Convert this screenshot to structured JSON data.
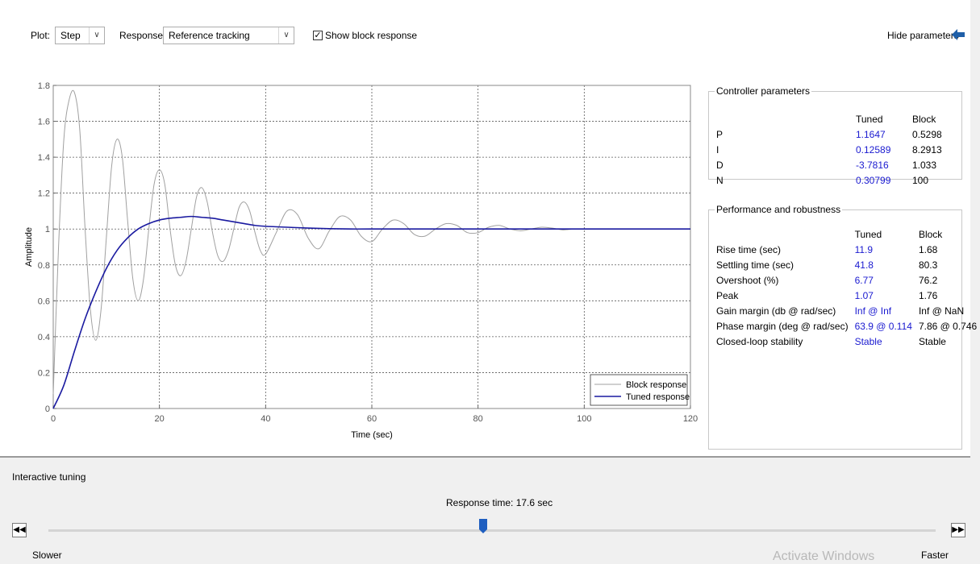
{
  "toolbar": {
    "plot_label": "Plot:",
    "plot_value": "Step",
    "response_label": "Response:",
    "response_value": "Reference tracking",
    "show_block_label": "Show block response",
    "show_block_checked": true,
    "hide_params_label": "Hide parameters"
  },
  "chart_data": {
    "type": "line",
    "xlabel": "Time (sec)",
    "ylabel": "Amplitude",
    "xlim": [
      0,
      120
    ],
    "ylim": [
      0,
      1.8
    ],
    "xticks": [
      0,
      20,
      40,
      60,
      80,
      100,
      120
    ],
    "yticks": [
      0,
      0.2,
      0.4,
      0.6,
      0.8,
      1,
      1.2,
      1.4,
      1.6,
      1.8
    ],
    "grid": true,
    "legend_position": "bottom-right",
    "series": [
      {
        "name": "Block response",
        "color": "#a0a0a0",
        "x": [
          0,
          1,
          2,
          3,
          4,
          5,
          6,
          7,
          8,
          9,
          10,
          11,
          12,
          13,
          14,
          15,
          16,
          17,
          18,
          19,
          20,
          21,
          22,
          23,
          24,
          25,
          26,
          27,
          28,
          29,
          30,
          31,
          32,
          33,
          34,
          35,
          36,
          37,
          38,
          39,
          40,
          42,
          44,
          46,
          48,
          50,
          52,
          54,
          56,
          58,
          60,
          62,
          64,
          66,
          68,
          70,
          72,
          74,
          76,
          78,
          80,
          82,
          84,
          86,
          88,
          90,
          92,
          94,
          96,
          98,
          100,
          104,
          108,
          112,
          116,
          120
        ],
        "y": [
          0.08,
          0.9,
          1.5,
          1.72,
          1.76,
          1.55,
          1.0,
          0.55,
          0.38,
          0.55,
          0.95,
          1.35,
          1.5,
          1.4,
          1.05,
          0.72,
          0.6,
          0.72,
          1.0,
          1.25,
          1.33,
          1.25,
          1.0,
          0.8,
          0.74,
          0.82,
          1.0,
          1.18,
          1.23,
          1.15,
          0.98,
          0.85,
          0.82,
          0.88,
          1.0,
          1.12,
          1.15,
          1.1,
          0.98,
          0.88,
          0.86,
          0.98,
          1.1,
          1.08,
          0.95,
          0.89,
          0.99,
          1.07,
          1.05,
          0.96,
          0.93,
          1.0,
          1.05,
          1.03,
          0.97,
          0.96,
          1.0,
          1.03,
          1.02,
          0.98,
          0.98,
          1.01,
          1.02,
          1.0,
          0.99,
          1.0,
          1.01,
          1.005,
          0.995,
          1.0,
          1.0,
          1.0,
          1.0,
          1.0,
          1.0,
          1.0
        ]
      },
      {
        "name": "Tuned response",
        "color": "#1a1aa0",
        "x": [
          0,
          2,
          4,
          6,
          8,
          10,
          12,
          14,
          16,
          18,
          20,
          22,
          24,
          26,
          28,
          30,
          32,
          34,
          36,
          38,
          40,
          44,
          48,
          52,
          56,
          60,
          70,
          80,
          90,
          100,
          110,
          120
        ],
        "y": [
          0,
          0.13,
          0.32,
          0.5,
          0.65,
          0.78,
          0.88,
          0.95,
          1.0,
          1.03,
          1.05,
          1.06,
          1.065,
          1.07,
          1.065,
          1.06,
          1.05,
          1.04,
          1.03,
          1.02,
          1.015,
          1.01,
          1.005,
          1.002,
          1.0,
          1.0,
          1.0,
          1.0,
          1.0,
          1.0,
          1.0,
          1.0
        ]
      }
    ]
  },
  "controller": {
    "title": "Controller parameters",
    "headers": [
      "",
      "Tuned",
      "Block"
    ],
    "rows": [
      [
        "P",
        "1.1647",
        "0.5298"
      ],
      [
        "I",
        "0.12589",
        "8.2913"
      ],
      [
        "D",
        "-3.7816",
        "1.033"
      ],
      [
        "N",
        "0.30799",
        "100"
      ]
    ]
  },
  "performance": {
    "title": "Performance and robustness",
    "headers": [
      "",
      "Tuned",
      "Block"
    ],
    "rows": [
      [
        "Rise time (sec)",
        "11.9",
        "1.68"
      ],
      [
        "Settling time (sec)",
        "41.8",
        "80.3"
      ],
      [
        "Overshoot (%)",
        "6.77",
        "76.2"
      ],
      [
        "Peak",
        "1.07",
        "1.76"
      ],
      [
        "Gain margin (db @ rad/sec)",
        "Inf @ Inf",
        "Inf @ NaN"
      ],
      [
        "Phase margin (deg @ rad/sec)",
        "63.9 @ 0.114",
        "7.86 @ 0.746"
      ],
      [
        "Closed-loop stability",
        "Stable",
        "Stable"
      ]
    ]
  },
  "tuning": {
    "title": "Interactive tuning",
    "response_time_label": "Response time: 17.6 sec",
    "slider_level": 0.49,
    "slower_label": "Slower",
    "faster_label": "Faster",
    "watermark": "Activate Windows"
  }
}
